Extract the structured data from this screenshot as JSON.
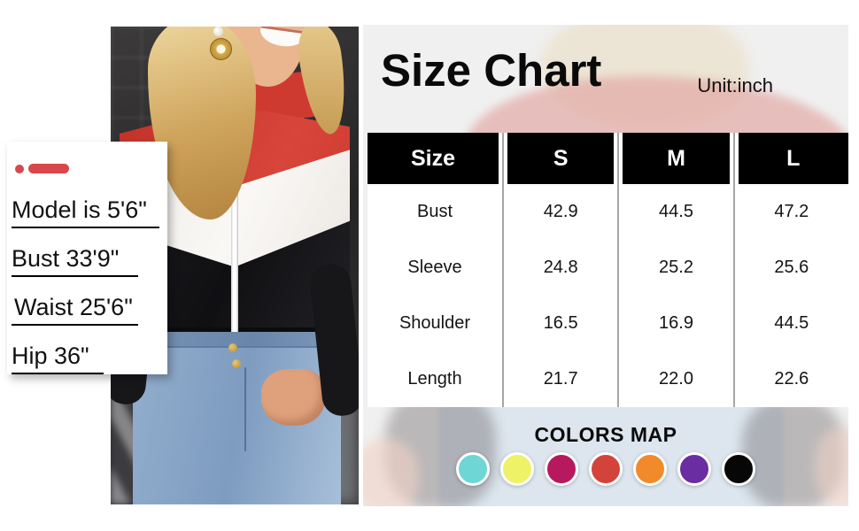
{
  "left_panel": {
    "accent_color": "#D9474C",
    "model_info": {
      "lines": [
        "Model is 5'6\"",
        "Bust 33'9\"",
        "Waist 25'6\"",
        "Hip 36\""
      ]
    }
  },
  "size_chart": {
    "title": "Size Chart",
    "unit": "Unit:inch",
    "header_bg": "#000000",
    "header_text_color": "#FFFFFF",
    "panel_bg": "#F0F0F0",
    "table": {
      "columns": [
        "Size",
        "S",
        "M",
        "L"
      ],
      "rows": [
        {
          "label": "Bust",
          "values": [
            "42.9",
            "44.5",
            "47.2"
          ]
        },
        {
          "label": "Sleeve",
          "values": [
            "24.8",
            "25.2",
            "25.6"
          ]
        },
        {
          "label": "Shoulder",
          "values": [
            "16.5",
            "16.9",
            "44.5"
          ]
        },
        {
          "label": "Length",
          "values": [
            "21.7",
            "22.0",
            "22.6"
          ]
        }
      ]
    },
    "colors_map": {
      "title": "COLORS MAP",
      "swatches": [
        {
          "name": "turquoise",
          "hex": "#6FD6D6"
        },
        {
          "name": "yellow",
          "hex": "#EDF266"
        },
        {
          "name": "magenta",
          "hex": "#B7195F"
        },
        {
          "name": "red",
          "hex": "#D4433B"
        },
        {
          "name": "orange",
          "hex": "#F18A2B"
        },
        {
          "name": "purple",
          "hex": "#6B2DA2"
        },
        {
          "name": "black",
          "hex": "#070707"
        }
      ]
    }
  }
}
